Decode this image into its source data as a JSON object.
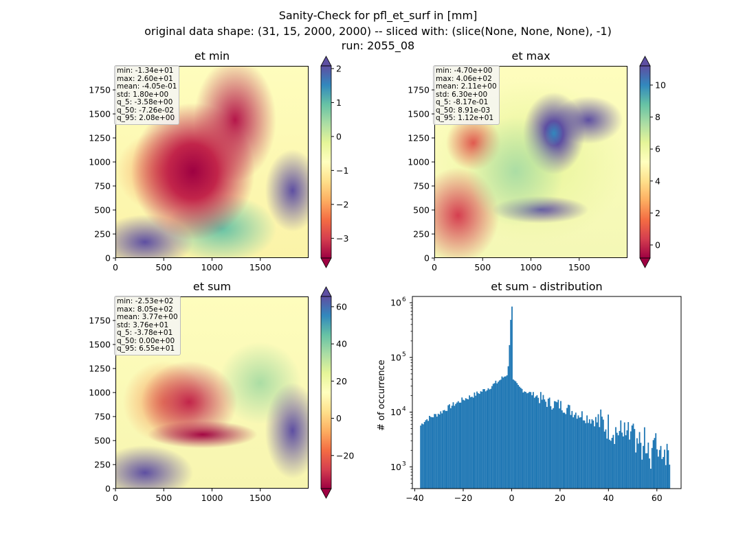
{
  "suptitle": {
    "line1": "Sanity-Check for pfl_et_surf in [mm]",
    "line2": "original data shape: (31, 15, 2000, 2000) -- sliced with: (slice(None, None, None), -1)",
    "line3": "run: 2055_08"
  },
  "colors": {
    "low": "#9e0142",
    "mid": "#ffffbf",
    "high": "#5e4fa2",
    "hist_bar": "#1f77b4"
  },
  "chart_data": [
    {
      "type": "heatmap",
      "title": "et min",
      "xlim": [
        0,
        2000
      ],
      "ylim": [
        0,
        2000
      ],
      "xticks": [
        "0",
        "500",
        "1000",
        "1500"
      ],
      "yticks": [
        "0",
        "250",
        "500",
        "750",
        "1000",
        "1250",
        "1500",
        "1750"
      ],
      "colorbar": {
        "min": -3.58,
        "max": 2.08,
        "ticks": [
          "2",
          "1",
          "0",
          "−1",
          "−2",
          "−3"
        ],
        "tick_values": [
          2,
          1,
          0,
          -1,
          -2,
          -3
        ],
        "extend": "both"
      },
      "stats": [
        "min: -1.34e+01",
        "max: 2.60e+01",
        "mean: -4.05e-01",
        "std: 1.80e+00",
        "q_5: -3.58e+00",
        "q_50: -7.26e-02",
        "q_95: 2.08e+00"
      ]
    },
    {
      "type": "heatmap",
      "title": "et max",
      "xlim": [
        0,
        2000
      ],
      "ylim": [
        0,
        2000
      ],
      "xticks": [
        "0",
        "500",
        "1000",
        "1500"
      ],
      "yticks": [
        "0",
        "250",
        "500",
        "750",
        "1000",
        "1250",
        "1500",
        "1750"
      ],
      "colorbar": {
        "min": -0.817,
        "max": 11.2,
        "ticks": [
          "10",
          "8",
          "6",
          "4",
          "2",
          "0"
        ],
        "tick_values": [
          10,
          8,
          6,
          4,
          2,
          0
        ],
        "extend": "both"
      },
      "stats": [
        "min: -4.70e+00",
        "max: 4.06e+02",
        "mean: 2.11e+00",
        "std: 6.30e+00",
        "q_5: -8.17e-01",
        "q_50: 8.91e-03",
        "q_95: 1.12e+01"
      ]
    },
    {
      "type": "heatmap",
      "title": "et sum",
      "xlim": [
        0,
        2000
      ],
      "ylim": [
        0,
        2000
      ],
      "xticks": [
        "0",
        "500",
        "1000",
        "1500"
      ],
      "yticks": [
        "0",
        "250",
        "500",
        "750",
        "1000",
        "1250",
        "1500",
        "1750"
      ],
      "colorbar": {
        "min": -37.8,
        "max": 65.5,
        "ticks": [
          "60",
          "40",
          "20",
          "0",
          "−20"
        ],
        "tick_values": [
          60,
          40,
          20,
          0,
          -20
        ],
        "extend": "both"
      },
      "stats": [
        "min: -2.53e+02",
        "max: 8.05e+02",
        "mean: 3.77e+00",
        "std: 3.76e+01",
        "q_5: -3.78e+01",
        "q_50: 0.00e+00",
        "q_95: 6.55e+01"
      ]
    },
    {
      "type": "bar",
      "title": "et sum - distribution",
      "ylabel": "# of occurrence",
      "yscale": "log",
      "xlim": [
        -41,
        70
      ],
      "ylim": [
        400,
        1300000
      ],
      "xticks": [
        "−40",
        "−20",
        "0",
        "20",
        "40",
        "60"
      ],
      "xtick_values": [
        -40,
        -20,
        0,
        20,
        40,
        60
      ],
      "yticks": [
        "10",
        "10",
        "10",
        "10"
      ],
      "ytick_exps": [
        "3",
        "4",
        "5",
        "6"
      ],
      "ytick_values": [
        1000,
        10000,
        100000,
        1000000
      ],
      "bin_range": [
        -37.8,
        65.5
      ],
      "bin_count": 200,
      "anchors": [
        [
          -37.8,
          5500
        ],
        [
          -36,
          7000
        ],
        [
          -34,
          7800
        ],
        [
          -30,
          9500
        ],
        [
          -25,
          13000
        ],
        [
          -20,
          17000
        ],
        [
          -15,
          21000
        ],
        [
          -10,
          27000
        ],
        [
          -6,
          35000
        ],
        [
          -3,
          45000
        ],
        [
          -1.5,
          52000
        ],
        [
          -0.1,
          850000
        ],
        [
          0.5,
          38000
        ],
        [
          3,
          28000
        ],
        [
          6,
          24000
        ],
        [
          10,
          20000
        ],
        [
          15,
          15000
        ],
        [
          20,
          13500
        ],
        [
          25,
          10500
        ],
        [
          30,
          8500
        ],
        [
          35,
          7000
        ],
        [
          40,
          5500
        ],
        [
          45,
          4200
        ],
        [
          50,
          3300
        ],
        [
          55,
          2800
        ],
        [
          60,
          2400
        ],
        [
          65.5,
          1800
        ]
      ]
    }
  ]
}
